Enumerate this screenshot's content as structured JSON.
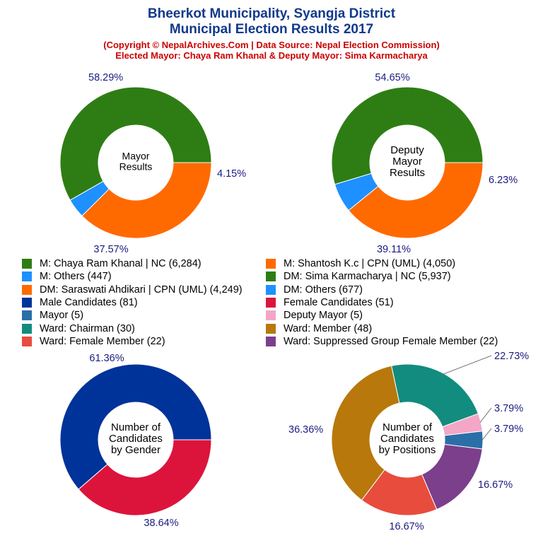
{
  "header": {
    "title_line1": "Bheerkot Municipality, Syangja District",
    "title_line2": "Municipal Election Results 2017",
    "subtitle_line1": "(Copyright © NepalArchives.Com | Data Source: Nepal Election Commission)",
    "subtitle_line2": "Elected Mayor: Chaya Ram Khanal & Deputy Mayor: Sima Karmacharya"
  },
  "legend": {
    "items": [
      {
        "label": "M: Chaya Ram Khanal | NC (6,284)",
        "color": "#2e7d14"
      },
      {
        "label": "M: Shantosh K.c | CPN (UML) (4,050)",
        "color": "#ff6a00"
      },
      {
        "label": "M: Others (447)",
        "color": "#1e90ff"
      },
      {
        "label": "DM: Sima Karmacharya | NC (5,937)",
        "color": "#2e7d14"
      },
      {
        "label": "DM: Saraswati Ahdikari | CPN (UML) (4,249)",
        "color": "#ff6a00"
      },
      {
        "label": "DM: Others (677)",
        "color": "#1e90ff"
      },
      {
        "label": "Male Candidates (81)",
        "color": "#003399"
      },
      {
        "label": "Female Candidates (51)",
        "color": "#dc143c"
      },
      {
        "label": "Mayor (5)",
        "color": "#2b6fa8"
      },
      {
        "label": "Deputy Mayor (5)",
        "color": "#f4a6c6"
      },
      {
        "label": "Ward: Chairman (30)",
        "color": "#128c7e"
      },
      {
        "label": "Ward: Member (48)",
        "color": "#b8780b"
      },
      {
        "label": "Ward: Female Member (22)",
        "color": "#e84c3d"
      },
      {
        "label": "Ward: Suppressed Group Female Member (22)",
        "color": "#7b3f8c"
      }
    ]
  },
  "chart_data": [
    {
      "type": "pie",
      "center_label": [
        "Mayor",
        "Results"
      ],
      "slices": [
        {
          "name": "M: Chaya Ram Khanal | NC",
          "value": 6284,
          "label": "58.29%",
          "color": "#2e7d14"
        },
        {
          "name": "M: Others",
          "value": 447,
          "label": "4.15%",
          "color": "#1e90ff"
        },
        {
          "name": "M: Shantosh K.c | CPN (UML)",
          "value": 4050,
          "label": "37.57%",
          "color": "#ff6a00"
        }
      ]
    },
    {
      "type": "pie",
      "center_label": [
        "Deputy",
        "Mayor",
        "Results"
      ],
      "slices": [
        {
          "name": "DM: Sima Karmacharya | NC",
          "value": 5937,
          "label": "54.65%",
          "color": "#2e7d14"
        },
        {
          "name": "DM: Others",
          "value": 677,
          "label": "6.23%",
          "color": "#1e90ff"
        },
        {
          "name": "DM: Saraswati Ahdikari | CPN (UML)",
          "value": 4249,
          "label": "39.11%",
          "color": "#ff6a00"
        }
      ]
    },
    {
      "type": "pie",
      "center_label": [
        "Number of",
        "Candidates",
        "by Gender"
      ],
      "slices": [
        {
          "name": "Male Candidates",
          "value": 81,
          "label": "61.36%",
          "color": "#003399"
        },
        {
          "name": "Female Candidates",
          "value": 51,
          "label": "38.64%",
          "color": "#dc143c"
        }
      ]
    },
    {
      "type": "pie",
      "center_label": [
        "Number of",
        "Candidates",
        "by Positions"
      ],
      "slices": [
        {
          "name": "Mayor",
          "value": 5,
          "label": "3.79%",
          "color": "#2b6fa8"
        },
        {
          "name": "Deputy Mayor",
          "value": 5,
          "label": "3.79%",
          "color": "#f4a6c6"
        },
        {
          "name": "Ward: Chairman",
          "value": 30,
          "label": "22.73%",
          "color": "#128c7e"
        },
        {
          "name": "Ward: Member",
          "value": 48,
          "label": "36.36%",
          "color": "#b8780b"
        },
        {
          "name": "Ward: Female Member",
          "value": 22,
          "label": "16.67%",
          "color": "#e84c3d"
        },
        {
          "name": "Ward: Suppressed Group Female Member",
          "value": 22,
          "label": "16.67%",
          "color": "#7b3f8c"
        }
      ]
    }
  ]
}
